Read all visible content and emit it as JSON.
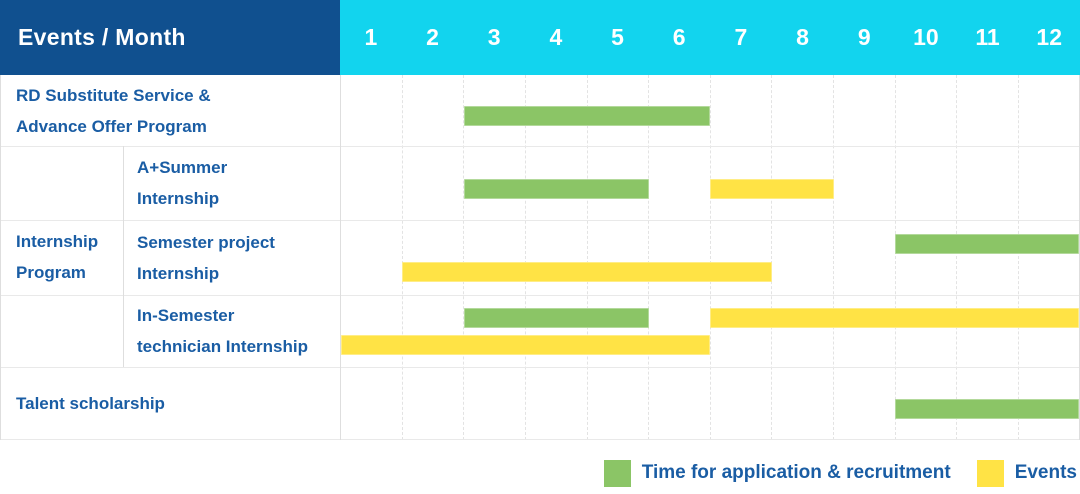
{
  "header": {
    "title": "Events / Month",
    "months": [
      "1",
      "2",
      "3",
      "4",
      "5",
      "6",
      "7",
      "8",
      "9",
      "10",
      "11",
      "12"
    ]
  },
  "colors": {
    "navy": "#10508F",
    "cyan": "#12D4EE",
    "green": "#8BC566",
    "yellow": "#FFE345",
    "text_blue": "#1A5DA4"
  },
  "table": {
    "row_labels": [
      {
        "id": "row-0",
        "lines": [
          "RD Substitute Service &",
          "Advance Offer Program"
        ]
      },
      {
        "id": "group",
        "lines": [
          "Internship",
          "Program"
        ]
      },
      {
        "id": "row-1",
        "lines": [
          "A+Summer",
          "Internship"
        ]
      },
      {
        "id": "row-2",
        "lines": [
          "Semester project",
          "Internship"
        ]
      },
      {
        "id": "row-3",
        "lines": [
          "In-Semester",
          "technician Internship"
        ]
      },
      {
        "id": "row-4",
        "lines": [
          "Talent scholarship"
        ]
      }
    ]
  },
  "legend": {
    "items": [
      {
        "key": "green",
        "label": "Time for application & recruitment"
      },
      {
        "key": "yellow",
        "label": "Events"
      }
    ]
  },
  "chart_data": {
    "type": "table",
    "subtype": "gantt-schedule",
    "title": "Events / Month",
    "x_axis": {
      "label": "Month",
      "categories": [
        1,
        2,
        3,
        4,
        5,
        6,
        7,
        8,
        9,
        10,
        11,
        12
      ]
    },
    "legend_position": "bottom-right",
    "series_legend": [
      {
        "name": "Time for application & recruitment",
        "color": "#8BC566"
      },
      {
        "name": "Events",
        "color": "#FFE345"
      }
    ],
    "rows": [
      {
        "group": "",
        "label": "RD Substitute Service & Advance Offer Program",
        "bars": [
          {
            "series": "application",
            "start_month": 3,
            "end_month": 6,
            "line": "mid"
          }
        ]
      },
      {
        "group": "Internship Program",
        "label": "A+Summer Internship",
        "bars": [
          {
            "series": "application",
            "start_month": 3,
            "end_month": 5,
            "line": "mid"
          },
          {
            "series": "events",
            "start_month": 7,
            "end_month": 8,
            "line": "mid"
          }
        ]
      },
      {
        "group": "Internship Program",
        "label": "Semester project Internship",
        "bars": [
          {
            "series": "application",
            "start_month": 10,
            "end_month": 12,
            "line": "top"
          },
          {
            "series": "events",
            "start_month": 2,
            "end_month": 7,
            "line": "bottom"
          }
        ]
      },
      {
        "group": "Internship Program",
        "label": "In-Semester technician Internship",
        "bars": [
          {
            "series": "application",
            "start_month": 3,
            "end_month": 5,
            "line": "top"
          },
          {
            "series": "events",
            "start_month": 7,
            "end_month": 12,
            "line": "top"
          },
          {
            "series": "events",
            "start_month": 1,
            "end_month": 6,
            "line": "bottom"
          }
        ]
      },
      {
        "group": "",
        "label": "Talent scholarship",
        "bars": [
          {
            "series": "application",
            "start_month": 10,
            "end_month": 12,
            "line": "mid"
          }
        ]
      }
    ]
  }
}
